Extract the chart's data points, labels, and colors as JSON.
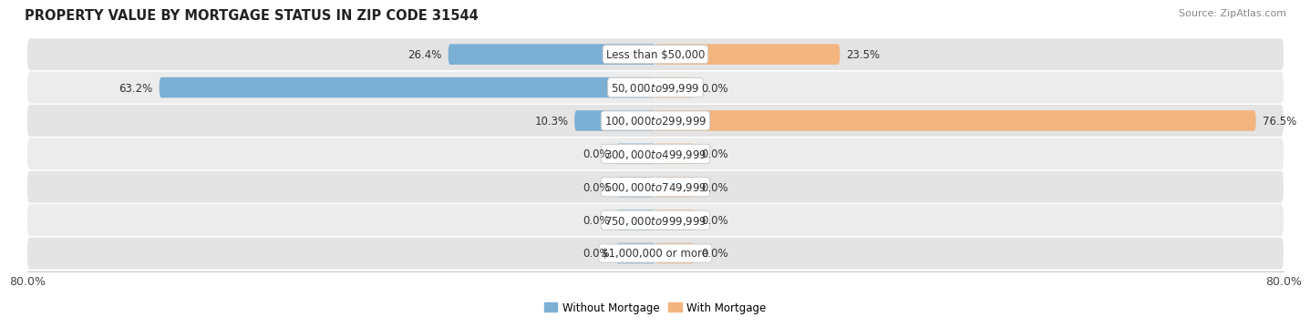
{
  "title": "PROPERTY VALUE BY MORTGAGE STATUS IN ZIP CODE 31544",
  "source": "Source: ZipAtlas.com",
  "categories": [
    "Less than $50,000",
    "$50,000 to $99,999",
    "$100,000 to $299,999",
    "$300,000 to $499,999",
    "$500,000 to $749,999",
    "$750,000 to $999,999",
    "$1,000,000 or more"
  ],
  "without_mortgage": [
    26.4,
    63.2,
    10.3,
    0.0,
    0.0,
    0.0,
    0.0
  ],
  "with_mortgage": [
    23.5,
    0.0,
    76.5,
    0.0,
    0.0,
    0.0,
    0.0
  ],
  "without_mortgage_color": "#7bafd4",
  "with_mortgage_color": "#f2b57e",
  "bar_height": 0.62,
  "row_bg_colors": [
    "#e4e4e4",
    "#ececec"
  ],
  "xlim": [
    -80,
    80
  ],
  "legend_label_without": "Without Mortgage",
  "legend_label_with": "With Mortgage",
  "title_fontsize": 10.5,
  "source_fontsize": 8,
  "label_fontsize": 8.5,
  "category_fontsize": 8.5,
  "stub_value": 5.0,
  "bottom_left_label": "80.0%",
  "bottom_right_label": "80.0%"
}
